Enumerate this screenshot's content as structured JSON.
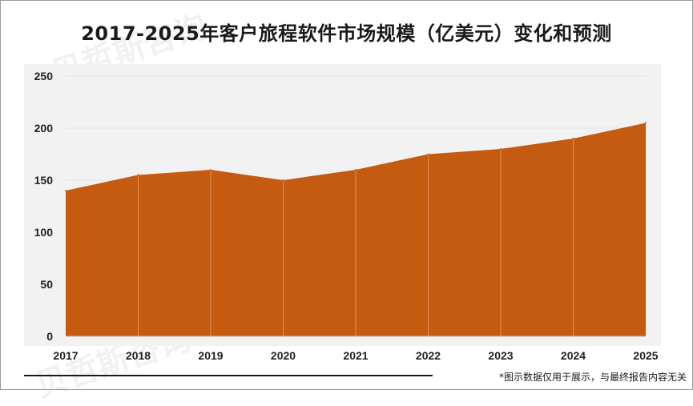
{
  "title": "2017-2025年客户旅程软件市场规模（亿美元）变化和预测",
  "footnote": "*图示数据仅用于展示，与最终报告内容无关",
  "watermark": "贝哲斯咨询",
  "colors": {
    "area": "#c55a11",
    "plot_bg": "#f2f2f2",
    "grid": "#e4e4e4",
    "vline": "#e8a070"
  },
  "chart_data": {
    "type": "area",
    "title": "2017-2025年客户旅程软件市场规模（亿美元）变化和预测",
    "x": [
      "2017",
      "2018",
      "2019",
      "2020",
      "2021",
      "2022",
      "2023",
      "2024",
      "2025"
    ],
    "values": [
      140,
      155,
      160,
      150,
      160,
      175,
      180,
      190,
      205
    ],
    "ylim": [
      0,
      250
    ],
    "yticks": [
      0,
      50,
      100,
      150,
      200,
      250
    ],
    "grid": true,
    "xlabel": "",
    "ylabel": ""
  }
}
